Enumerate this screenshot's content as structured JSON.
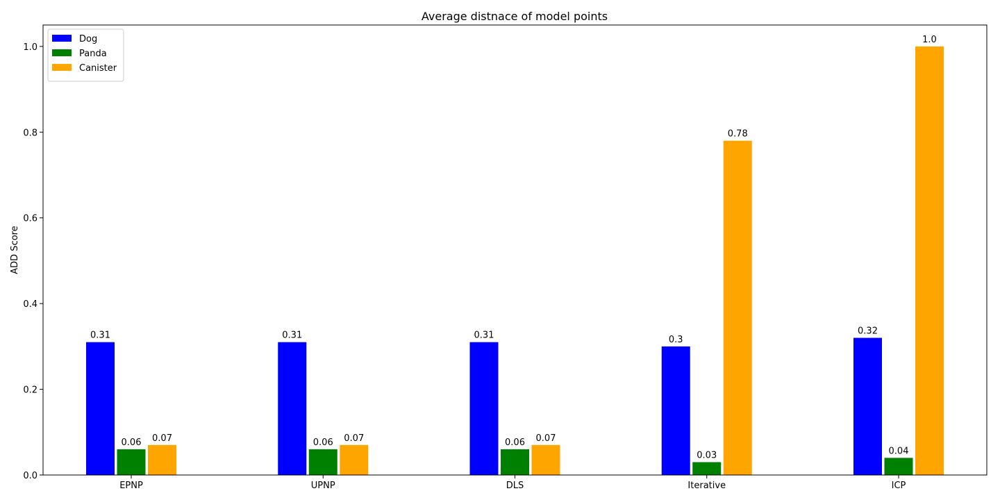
{
  "chart_data": {
    "type": "bar",
    "title": "Average distnace of model points",
    "xlabel": "",
    "ylabel": "ADD Score",
    "ylim": [
      0,
      1.05
    ],
    "yticks": [
      "0.0",
      "0.2",
      "0.4",
      "0.6",
      "0.8",
      "1.0"
    ],
    "categories": [
      "EPNP",
      "UPNP",
      "DLS",
      "Iterative",
      "ICP"
    ],
    "series": [
      {
        "name": "Dog",
        "color": "#0000ff",
        "values": [
          0.31,
          0.31,
          0.31,
          0.3,
          0.32
        ],
        "labels": [
          "0.31",
          "0.31",
          "0.31",
          "0.3",
          "0.32"
        ]
      },
      {
        "name": "Panda",
        "color": "#008000",
        "values": [
          0.06,
          0.06,
          0.06,
          0.03,
          0.04
        ],
        "labels": [
          "0.06",
          "0.06",
          "0.06",
          "0.03",
          "0.04"
        ]
      },
      {
        "name": "Canister",
        "color": "#ffa500",
        "values": [
          0.07,
          0.07,
          0.07,
          0.78,
          1.0
        ],
        "labels": [
          "0.07",
          "0.07",
          "0.07",
          "0.78",
          "1.0"
        ]
      }
    ],
    "legend": "top-left",
    "grid": false
  }
}
